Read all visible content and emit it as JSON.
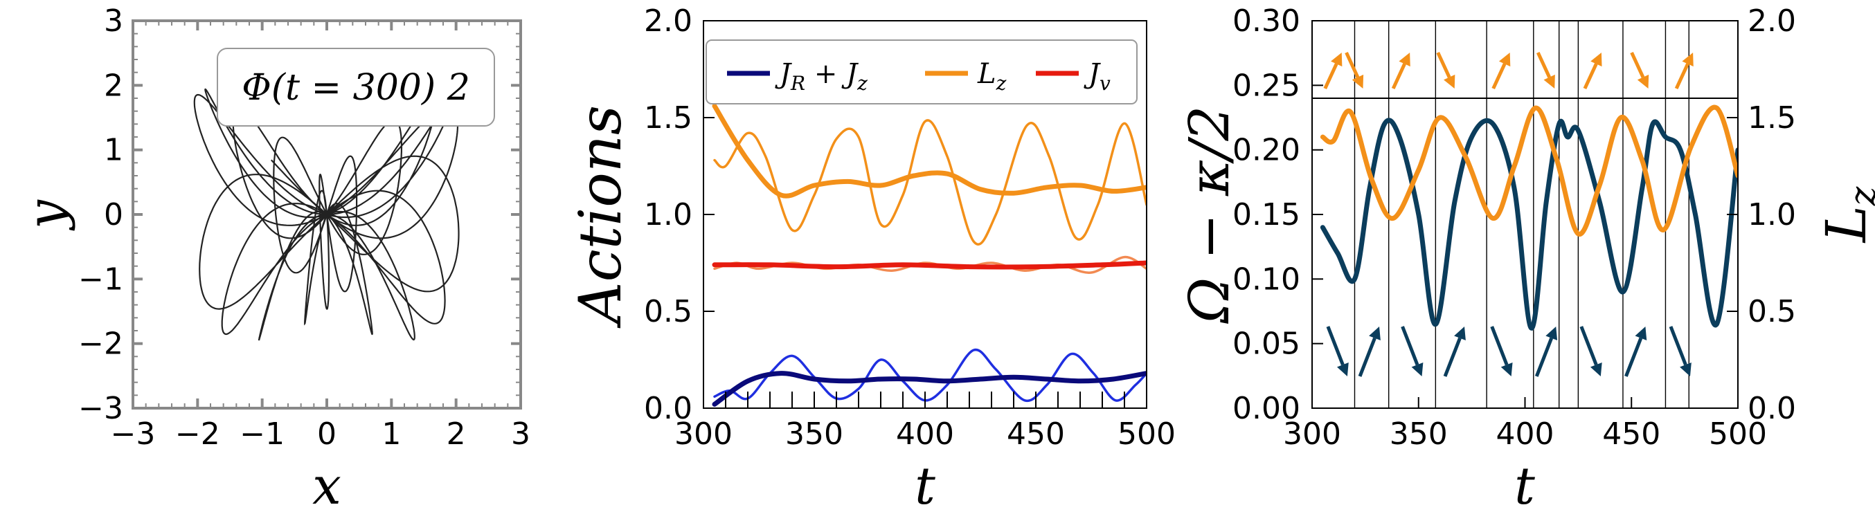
{
  "colors": {
    "orbit": "#222222",
    "sum_action": "#0a0a7a",
    "sum_action_fast": "#1f2fe0",
    "Lz": "#f39019",
    "Jv": "#e61b0f",
    "Jv_fast": "#f28a52",
    "frequency": "#0b3d5c",
    "axis_gray": "#888888"
  },
  "chart_data": [
    {
      "type": "line",
      "panel": "orbit",
      "xlabel": "x",
      "ylabel": "y",
      "xlim": [
        -3,
        3
      ],
      "ylim": [
        -3,
        3
      ],
      "xticks": [
        "−3",
        "−2",
        "−1",
        "0",
        "1",
        "2",
        "3"
      ],
      "yticks": [
        "3",
        "2",
        "1",
        "0",
        "−1",
        "−2",
        "−3"
      ],
      "annotation": "Φ(t = 300) 2",
      "orbit_model": {
        "a": 2.05,
        "b": 1.95,
        "wx": 1.0,
        "wy": 1.1,
        "phase_y": 1.5708,
        "t_range": [
          0,
          57
        ]
      }
    },
    {
      "type": "line",
      "panel": "actions",
      "xlabel": "t",
      "ylabel": "Actions",
      "xlim": [
        300,
        500
      ],
      "ylim": [
        0,
        2.0
      ],
      "xticks": [
        "300",
        "350",
        "400",
        "450",
        "500"
      ],
      "yticks": [
        "2.0",
        "1.5",
        "1.0",
        "0.5",
        "0.0"
      ],
      "legend_position": "top",
      "series": [
        {
          "name": "J_R + J_z",
          "label_main": "J",
          "label_sub": "R",
          "label_rest": " + ",
          "label_main2": "J",
          "label_sub2": "z",
          "role": "smooth",
          "x": [
            305,
            320,
            335,
            350,
            365,
            380,
            395,
            410,
            425,
            440,
            455,
            470,
            485,
            500
          ],
          "y": [
            0.02,
            0.14,
            0.18,
            0.15,
            0.14,
            0.15,
            0.15,
            0.14,
            0.15,
            0.16,
            0.15,
            0.14,
            0.15,
            0.18
          ]
        },
        {
          "name": "J_R + J_z (instantaneous)",
          "role": "osc",
          "x": [
            305,
            312,
            320,
            330,
            340,
            350,
            360,
            370,
            380,
            390,
            400,
            410,
            422,
            432,
            445,
            455,
            466,
            476,
            486,
            495,
            500
          ],
          "y": [
            0.06,
            0.09,
            0.05,
            0.18,
            0.27,
            0.16,
            0.05,
            0.1,
            0.25,
            0.14,
            0.04,
            0.12,
            0.3,
            0.2,
            0.04,
            0.12,
            0.28,
            0.18,
            0.04,
            0.12,
            0.18
          ]
        },
        {
          "name": "L_z",
          "label_main": "L",
          "label_sub": "z",
          "role": "smooth",
          "x": [
            305,
            320,
            335,
            350,
            365,
            380,
            395,
            410,
            425,
            440,
            455,
            470,
            485,
            500
          ],
          "y": [
            1.56,
            1.28,
            1.1,
            1.15,
            1.17,
            1.15,
            1.2,
            1.21,
            1.13,
            1.11,
            1.14,
            1.15,
            1.12,
            1.14
          ]
        },
        {
          "name": "L_z (instantaneous)",
          "role": "osc",
          "x": [
            305,
            310,
            320,
            328,
            340,
            350,
            360,
            370,
            380,
            390,
            400,
            410,
            422,
            432,
            446,
            456,
            468,
            478,
            490,
            500
          ],
          "y": [
            1.28,
            1.25,
            1.42,
            1.3,
            0.92,
            1.1,
            1.39,
            1.4,
            0.95,
            1.1,
            1.48,
            1.3,
            0.86,
            1.0,
            1.46,
            1.3,
            0.88,
            1.05,
            1.47,
            1.05
          ]
        },
        {
          "name": "J_v",
          "label_main": "J",
          "label_sub": "v",
          "role": "smooth",
          "x": [
            305,
            330,
            360,
            390,
            420,
            450,
            480,
            500
          ],
          "y": [
            0.74,
            0.74,
            0.73,
            0.74,
            0.73,
            0.73,
            0.74,
            0.75
          ]
        },
        {
          "name": "J_v (instantaneous)",
          "role": "osc",
          "x": [
            305,
            315,
            325,
            340,
            355,
            370,
            385,
            400,
            415,
            430,
            445,
            460,
            475,
            490,
            500
          ],
          "y": [
            0.72,
            0.75,
            0.72,
            0.75,
            0.72,
            0.74,
            0.71,
            0.75,
            0.72,
            0.75,
            0.71,
            0.74,
            0.7,
            0.78,
            0.72
          ]
        }
      ]
    },
    {
      "type": "line",
      "panel": "frequency",
      "xlabel": "t",
      "ylabel": "Ω − κ/2",
      "ylabel_right": "L_z",
      "xlim": [
        300,
        500
      ],
      "ylim": [
        0,
        0.3
      ],
      "ylim_right": [
        0,
        2.0
      ],
      "xticks": [
        "300",
        "350",
        "400",
        "450",
        "500"
      ],
      "yticks": [
        "0.30",
        "0.25",
        "0.20",
        "0.15",
        "0.10",
        "0.05",
        "0.00"
      ],
      "yticks_right": [
        "2.0",
        "1.5",
        "1.0",
        "0.5",
        "0.0"
      ],
      "hline": 0.24,
      "vlines": [
        320,
        336,
        358,
        382,
        404,
        416,
        425,
        446,
        466,
        477
      ],
      "series": [
        {
          "name": "Ω − κ/2",
          "axis": "left",
          "x": [
            305,
            312,
            320,
            327,
            334,
            341,
            350,
            358,
            367,
            375,
            385,
            395,
            403,
            410,
            416,
            420,
            425,
            435,
            446,
            455,
            460,
            466,
            473,
            480,
            490,
            500
          ],
          "y": [
            0.14,
            0.12,
            0.1,
            0.17,
            0.22,
            0.21,
            0.15,
            0.065,
            0.16,
            0.21,
            0.22,
            0.17,
            0.062,
            0.16,
            0.22,
            0.21,
            0.215,
            0.16,
            0.09,
            0.17,
            0.22,
            0.21,
            0.2,
            0.15,
            0.065,
            0.2
          ]
        },
        {
          "name": "L_z",
          "axis": "right",
          "x": [
            305,
            310,
            318,
            328,
            338,
            350,
            360,
            372,
            385,
            395,
            405,
            415,
            425,
            435,
            445,
            455,
            465,
            478,
            490,
            500
          ],
          "y": [
            1.4,
            1.38,
            1.53,
            1.18,
            0.98,
            1.23,
            1.5,
            1.3,
            0.98,
            1.25,
            1.55,
            1.28,
            0.9,
            1.15,
            1.5,
            1.28,
            0.92,
            1.35,
            1.55,
            1.2
          ]
        }
      ],
      "arrows": [
        {
          "t": 310,
          "band": "top",
          "dir": "up"
        },
        {
          "t": 320,
          "band": "top",
          "dir": "down"
        },
        {
          "t": 342,
          "band": "top",
          "dir": "up"
        },
        {
          "t": 363,
          "band": "top",
          "dir": "down"
        },
        {
          "t": 389,
          "band": "top",
          "dir": "up"
        },
        {
          "t": 410,
          "band": "top",
          "dir": "down"
        },
        {
          "t": 432,
          "band": "top",
          "dir": "up"
        },
        {
          "t": 454,
          "band": "top",
          "dir": "down"
        },
        {
          "t": 475,
          "band": "top",
          "dir": "up"
        },
        {
          "t": 312,
          "band": "bottom",
          "dir": "down"
        },
        {
          "t": 327,
          "band": "bottom",
          "dir": "up"
        },
        {
          "t": 347,
          "band": "bottom",
          "dir": "down"
        },
        {
          "t": 367,
          "band": "bottom",
          "dir": "up"
        },
        {
          "t": 389,
          "band": "bottom",
          "dir": "down"
        },
        {
          "t": 410,
          "band": "bottom",
          "dir": "up"
        },
        {
          "t": 431,
          "band": "bottom",
          "dir": "down"
        },
        {
          "t": 452,
          "band": "bottom",
          "dir": "up"
        },
        {
          "t": 473,
          "band": "bottom",
          "dir": "down"
        }
      ]
    }
  ]
}
